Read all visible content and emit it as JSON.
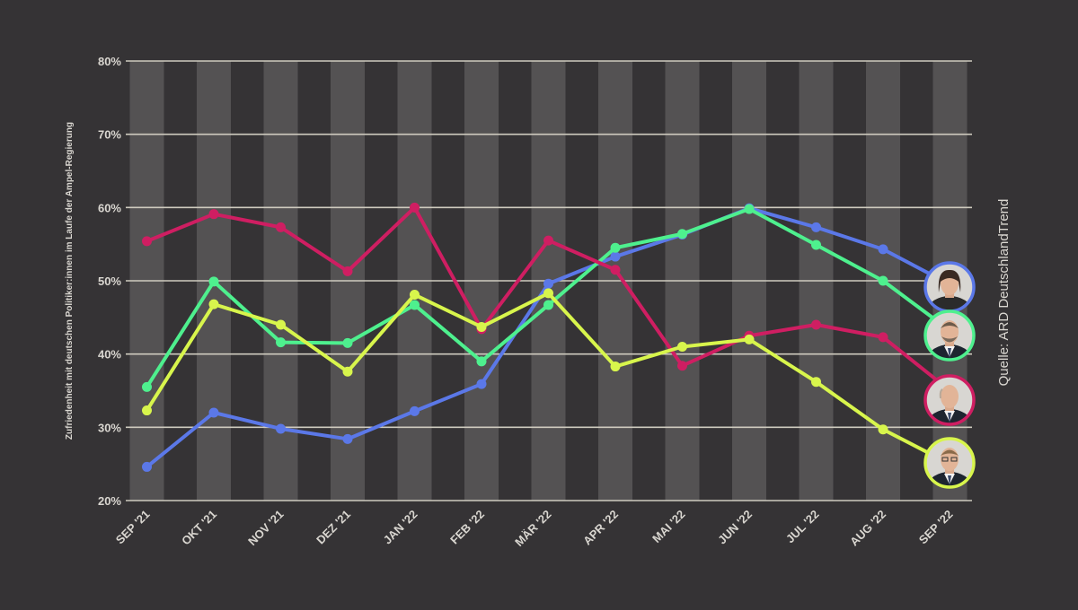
{
  "chart_data": {
    "type": "line",
    "ylabel": "Zufriedenheit mit deutschen Politiker:innen im Laufe der Ampel-Regierung",
    "source": "Quelle: ARD DeutschlandTrend",
    "categories": [
      "SEP '21",
      "OKT '21",
      "NOV '21",
      "DEZ '21",
      "JAN '22",
      "FEB '22",
      "MÄR '22",
      "APR '22",
      "MAI '22",
      "JUN '22",
      "JUL '22",
      "AUG '22",
      "SEP '22"
    ],
    "ylim": [
      20,
      80
    ],
    "yticks": [
      20,
      30,
      40,
      50,
      60,
      70,
      80
    ],
    "ytick_labels": [
      "20%",
      "30%",
      "40%",
      "50%",
      "60%",
      "70%",
      "80%"
    ],
    "grid": true,
    "series": [
      {
        "color": "#5b78e8",
        "values": [
          24.6,
          32,
          29.8,
          28.4,
          32.2,
          35.9,
          49.6,
          53.3,
          56.3,
          59.9,
          57.3,
          54.3,
          49.5
        ]
      },
      {
        "color": "#4ef08e",
        "values": [
          35.5,
          49.9,
          41.6,
          41.5,
          46.7,
          39,
          46.7,
          54.5,
          56.4,
          59.8,
          54.9,
          50,
          43.2
        ]
      },
      {
        "color": "#cf1e62",
        "values": [
          55.4,
          59.1,
          57.3,
          51.3,
          60,
          43.4,
          55.5,
          51.5,
          38.4,
          42.5,
          44,
          42.3,
          35
        ]
      },
      {
        "color": "#d8f54c",
        "values": [
          32.3,
          46.8,
          44,
          37.6,
          48.1,
          43.7,
          48.3,
          38.3,
          41,
          42,
          36.2,
          29.7,
          25
        ]
      }
    ],
    "avatars": [
      {
        "series": 0,
        "name": "avatar-woman",
        "color": "#5b78e8",
        "value": 49.5
      },
      {
        "series": 1,
        "name": "avatar-man-beard",
        "color": "#4ef08e",
        "value": 43.2
      },
      {
        "series": 2,
        "name": "avatar-man-bald",
        "color": "#cf1e62",
        "value": 35
      },
      {
        "series": 3,
        "name": "avatar-man-glasses",
        "color": "#d8f54c",
        "value": 25
      }
    ]
  }
}
